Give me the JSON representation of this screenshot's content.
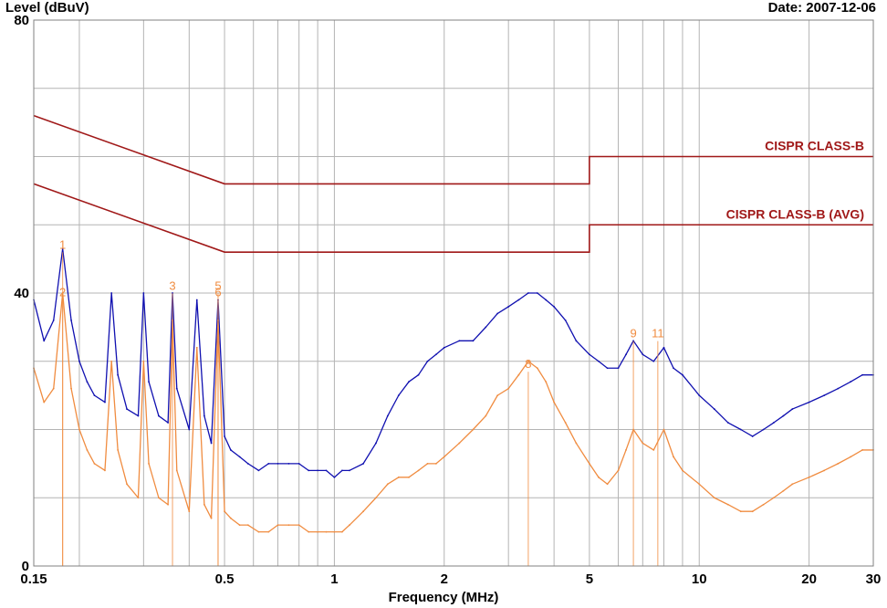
{
  "header": {
    "y_axis_label": "Level (dBuV)",
    "date": "Date: 2007-12-06"
  },
  "chart_data": {
    "type": "line",
    "title": "",
    "xlabel": "Frequency (MHz)",
    "ylabel": "Level (dBuV)",
    "x_scale": "log",
    "xlim": [
      0.15,
      30
    ],
    "ylim": [
      0,
      80
    ],
    "grid": true,
    "x_tick_labels": [
      "0.15",
      "0.5",
      "1",
      "2",
      "5",
      "10",
      "20",
      "30"
    ],
    "x_tick_values": [
      0.15,
      0.5,
      1,
      2,
      5,
      10,
      20,
      30
    ],
    "y_tick_labels": [
      "0",
      "40",
      "80"
    ],
    "y_tick_values": [
      0,
      40,
      80
    ],
    "limit_lines": [
      {
        "name": "CISPR CLASS-B",
        "color": "#a01818",
        "points": [
          [
            0.15,
            66
          ],
          [
            0.5,
            56
          ],
          [
            5,
            56
          ],
          [
            5,
            60
          ],
          [
            30,
            60
          ]
        ]
      },
      {
        "name": "CISPR CLASS-B (AVG)",
        "color": "#a01818",
        "points": [
          [
            0.15,
            56
          ],
          [
            0.5,
            46
          ],
          [
            5,
            46
          ],
          [
            5,
            50
          ],
          [
            30,
            50
          ]
        ]
      }
    ],
    "series": [
      {
        "color": "#1010b0",
        "points": [
          [
            0.15,
            39
          ],
          [
            0.16,
            33
          ],
          [
            0.17,
            36
          ],
          [
            0.18,
            46.5
          ],
          [
            0.19,
            36
          ],
          [
            0.2,
            30
          ],
          [
            0.21,
            27
          ],
          [
            0.22,
            25
          ],
          [
            0.235,
            24
          ],
          [
            0.245,
            40
          ],
          [
            0.255,
            28
          ],
          [
            0.27,
            23
          ],
          [
            0.29,
            22
          ],
          [
            0.3,
            40
          ],
          [
            0.31,
            27
          ],
          [
            0.33,
            22
          ],
          [
            0.35,
            21
          ],
          [
            0.36,
            40
          ],
          [
            0.37,
            26
          ],
          [
            0.4,
            20
          ],
          [
            0.42,
            39
          ],
          [
            0.44,
            22
          ],
          [
            0.46,
            18
          ],
          [
            0.48,
            39
          ],
          [
            0.5,
            19
          ],
          [
            0.52,
            17
          ],
          [
            0.55,
            16
          ],
          [
            0.58,
            15
          ],
          [
            0.62,
            14
          ],
          [
            0.66,
            15
          ],
          [
            0.7,
            15
          ],
          [
            0.75,
            15
          ],
          [
            0.8,
            15
          ],
          [
            0.85,
            14
          ],
          [
            0.9,
            14
          ],
          [
            0.95,
            14
          ],
          [
            1,
            13
          ],
          [
            1.05,
            14
          ],
          [
            1.1,
            14
          ],
          [
            1.2,
            15
          ],
          [
            1.3,
            18
          ],
          [
            1.4,
            22
          ],
          [
            1.5,
            25
          ],
          [
            1.6,
            27
          ],
          [
            1.7,
            28
          ],
          [
            1.8,
            30
          ],
          [
            1.9,
            31
          ],
          [
            2,
            32
          ],
          [
            2.2,
            33
          ],
          [
            2.4,
            33
          ],
          [
            2.6,
            35
          ],
          [
            2.8,
            37
          ],
          [
            3,
            38
          ],
          [
            3.2,
            39
          ],
          [
            3.4,
            40
          ],
          [
            3.6,
            40
          ],
          [
            3.8,
            39
          ],
          [
            4,
            38
          ],
          [
            4.3,
            36
          ],
          [
            4.6,
            33
          ],
          [
            5,
            31
          ],
          [
            5.3,
            30
          ],
          [
            5.6,
            29
          ],
          [
            6,
            29
          ],
          [
            6.3,
            31
          ],
          [
            6.6,
            33
          ],
          [
            7,
            31
          ],
          [
            7.5,
            30
          ],
          [
            8,
            32
          ],
          [
            8.5,
            29
          ],
          [
            9,
            28
          ],
          [
            10,
            25
          ],
          [
            11,
            23
          ],
          [
            12,
            21
          ],
          [
            13,
            20
          ],
          [
            14,
            19
          ],
          [
            15,
            20
          ],
          [
            16,
            21
          ],
          [
            17,
            22
          ],
          [
            18,
            23
          ],
          [
            20,
            24
          ],
          [
            22,
            25
          ],
          [
            24,
            26
          ],
          [
            26,
            27
          ],
          [
            28,
            28
          ],
          [
            30,
            28
          ]
        ]
      },
      {
        "color": "#f08c40",
        "points": [
          [
            0.15,
            29
          ],
          [
            0.16,
            24
          ],
          [
            0.17,
            26
          ],
          [
            0.18,
            40
          ],
          [
            0.19,
            26
          ],
          [
            0.2,
            20
          ],
          [
            0.21,
            17
          ],
          [
            0.22,
            15
          ],
          [
            0.235,
            14
          ],
          [
            0.245,
            30
          ],
          [
            0.255,
            17
          ],
          [
            0.27,
            12
          ],
          [
            0.29,
            10
          ],
          [
            0.3,
            30
          ],
          [
            0.31,
            15
          ],
          [
            0.33,
            10
          ],
          [
            0.35,
            9
          ],
          [
            0.36,
            36
          ],
          [
            0.37,
            14
          ],
          [
            0.4,
            8
          ],
          [
            0.42,
            32
          ],
          [
            0.44,
            9
          ],
          [
            0.46,
            7
          ],
          [
            0.48,
            36
          ],
          [
            0.5,
            8
          ],
          [
            0.52,
            7
          ],
          [
            0.55,
            6
          ],
          [
            0.58,
            6
          ],
          [
            0.62,
            5
          ],
          [
            0.66,
            5
          ],
          [
            0.7,
            6
          ],
          [
            0.75,
            6
          ],
          [
            0.8,
            6
          ],
          [
            0.85,
            5
          ],
          [
            0.9,
            5
          ],
          [
            0.95,
            5
          ],
          [
            1,
            5
          ],
          [
            1.05,
            5
          ],
          [
            1.1,
            6
          ],
          [
            1.2,
            8
          ],
          [
            1.3,
            10
          ],
          [
            1.4,
            12
          ],
          [
            1.5,
            13
          ],
          [
            1.6,
            13
          ],
          [
            1.7,
            14
          ],
          [
            1.8,
            15
          ],
          [
            1.9,
            15
          ],
          [
            2,
            16
          ],
          [
            2.2,
            18
          ],
          [
            2.4,
            20
          ],
          [
            2.6,
            22
          ],
          [
            2.8,
            25
          ],
          [
            3,
            26
          ],
          [
            3.2,
            28
          ],
          [
            3.4,
            30
          ],
          [
            3.6,
            29
          ],
          [
            3.8,
            27
          ],
          [
            4,
            24
          ],
          [
            4.3,
            21
          ],
          [
            4.6,
            18
          ],
          [
            5,
            15
          ],
          [
            5.3,
            13
          ],
          [
            5.6,
            12
          ],
          [
            6,
            14
          ],
          [
            6.3,
            17
          ],
          [
            6.6,
            20
          ],
          [
            7,
            18
          ],
          [
            7.5,
            17
          ],
          [
            8,
            20
          ],
          [
            8.5,
            16
          ],
          [
            9,
            14
          ],
          [
            10,
            12
          ],
          [
            11,
            10
          ],
          [
            12,
            9
          ],
          [
            13,
            8
          ],
          [
            14,
            8
          ],
          [
            15,
            9
          ],
          [
            16,
            10
          ],
          [
            17,
            11
          ],
          [
            18,
            12
          ],
          [
            20,
            13
          ],
          [
            22,
            14
          ],
          [
            24,
            15
          ],
          [
            26,
            16
          ],
          [
            28,
            17
          ],
          [
            30,
            17
          ]
        ]
      }
    ],
    "markers": [
      {
        "label": "1",
        "x": 0.18,
        "y": 46.5,
        "color": "#f08c40"
      },
      {
        "label": "2",
        "x": 0.18,
        "y": 39.5,
        "color": "#f08c40"
      },
      {
        "label": "3",
        "x": 0.36,
        "y": 40.5,
        "color": "#f08c40"
      },
      {
        "label": "5",
        "x": 0.48,
        "y": 40.5,
        "color": "#f08c40"
      },
      {
        "label": "6",
        "x": 0.48,
        "y": 39.5,
        "color": "#f08c40"
      },
      {
        "label": "8",
        "x": 3.4,
        "y": 29,
        "color": "#f08c40"
      },
      {
        "label": "9",
        "x": 6.6,
        "y": 33.5,
        "color": "#f08c40"
      },
      {
        "label": "11",
        "x": 7.7,
        "y": 33.5,
        "color": "#f08c40"
      }
    ]
  }
}
